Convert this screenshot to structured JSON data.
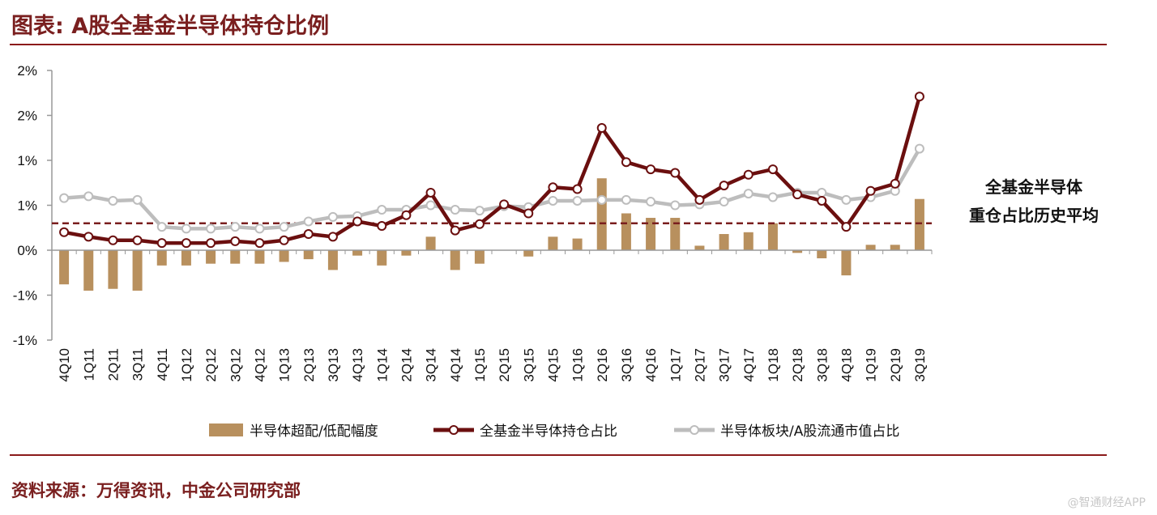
{
  "header": {
    "title": "图表: A股全基金半导体持仓比例"
  },
  "footer": {
    "source": "资料来源：万得资讯，中金公司研究部",
    "watermark": "@智通财经APP"
  },
  "annotation": {
    "line1": "全基金半导体",
    "line2": "重仓占比历史平均"
  },
  "colors": {
    "bar": "#b8905e",
    "fund": "#6b0f0f",
    "sector": "#bdbdbd",
    "avg": "#7a1f1f",
    "rule": "#8b1a1a"
  },
  "chart_data": {
    "type": "bar",
    "categories": [
      "4Q10",
      "1Q11",
      "2Q11",
      "3Q11",
      "4Q11",
      "1Q12",
      "2Q12",
      "3Q12",
      "4Q12",
      "1Q13",
      "2Q13",
      "3Q13",
      "4Q13",
      "1Q14",
      "2Q14",
      "3Q14",
      "4Q14",
      "1Q15",
      "2Q15",
      "3Q15",
      "4Q15",
      "1Q16",
      "2Q16",
      "3Q16",
      "4Q16",
      "1Q17",
      "2Q17",
      "3Q17",
      "4Q17",
      "1Q18",
      "2Q18",
      "3Q18",
      "4Q18",
      "1Q19",
      "2Q19",
      "3Q19"
    ],
    "y_tick_labels": [
      "2%",
      "2%",
      "1%",
      "1%",
      "0%",
      "-1%",
      "-1%"
    ],
    "y_tick_values": [
      2.0,
      1.5,
      1.0,
      0.5,
      0.0,
      -0.5,
      -1.0
    ],
    "ylim": [
      -1.0,
      2.0
    ],
    "series": [
      {
        "name": "半导体超配/低配幅度",
        "type": "bar",
        "values": [
          -0.38,
          -0.45,
          -0.43,
          -0.45,
          -0.17,
          -0.17,
          -0.15,
          -0.15,
          -0.15,
          -0.13,
          -0.1,
          -0.22,
          -0.06,
          -0.17,
          -0.06,
          0.15,
          -0.22,
          -0.15,
          0.0,
          -0.07,
          0.15,
          0.13,
          0.8,
          0.41,
          0.36,
          0.36,
          0.05,
          0.18,
          0.2,
          0.3,
          -0.03,
          -0.09,
          -0.28,
          0.06,
          0.06,
          0.57
        ]
      },
      {
        "name": "全基金半导体持仓占比",
        "type": "line",
        "values": [
          0.2,
          0.15,
          0.11,
          0.11,
          0.08,
          0.08,
          0.08,
          0.1,
          0.08,
          0.11,
          0.18,
          0.15,
          0.32,
          0.27,
          0.39,
          0.64,
          0.22,
          0.29,
          0.51,
          0.41,
          0.7,
          0.68,
          1.36,
          0.98,
          0.9,
          0.86,
          0.56,
          0.72,
          0.84,
          0.9,
          0.62,
          0.55,
          0.26,
          0.66,
          0.74,
          1.71
        ]
      },
      {
        "name": "半导体板块/A股流通市值占比",
        "type": "line",
        "values": [
          0.58,
          0.6,
          0.55,
          0.56,
          0.26,
          0.24,
          0.24,
          0.26,
          0.24,
          0.26,
          0.32,
          0.37,
          0.38,
          0.45,
          0.45,
          0.5,
          0.45,
          0.44,
          0.49,
          0.48,
          0.55,
          0.55,
          0.56,
          0.56,
          0.54,
          0.5,
          0.51,
          0.54,
          0.63,
          0.59,
          0.64,
          0.64,
          0.56,
          0.59,
          0.66,
          1.13
        ]
      }
    ],
    "average_line": {
      "value": 0.3
    },
    "grid": false,
    "legend": "bottom"
  }
}
